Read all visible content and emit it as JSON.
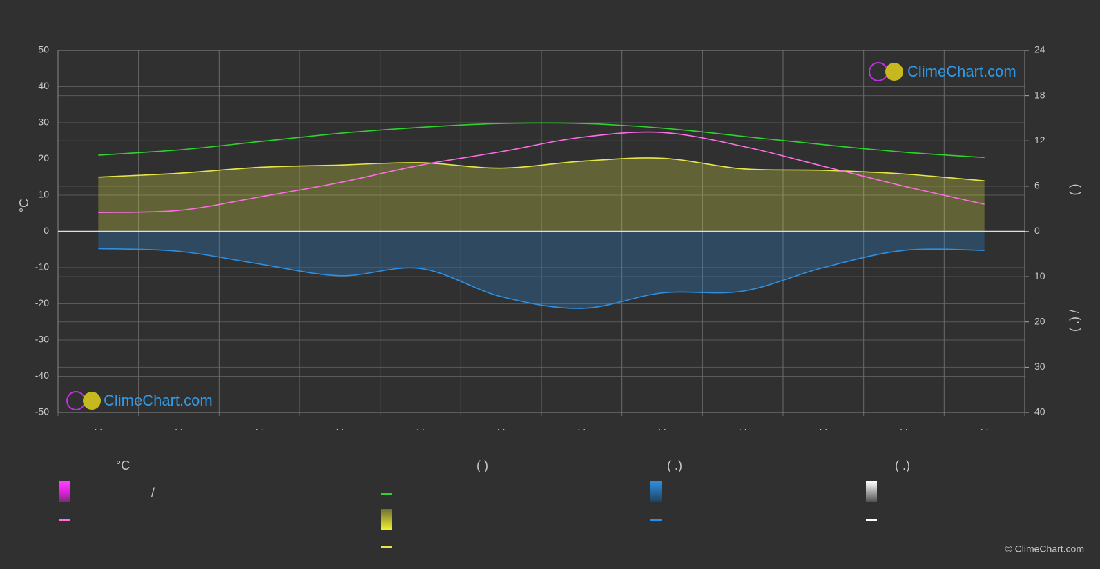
{
  "chart_data": {
    "type": "line",
    "ylabel": "°C",
    "y2label": "(        )",
    "y3label": "(  .)       /",
    "categories": [
      ". .",
      ". .",
      ". .",
      ". .",
      ". .",
      ". .",
      ". .",
      ". .",
      ". .",
      ". .",
      ". .",
      ". ."
    ],
    "ylim": [
      -50,
      50
    ],
    "yticks": [
      50,
      40,
      30,
      20,
      10,
      0,
      -10,
      -20,
      -30,
      -40,
      -50
    ],
    "y2lim": [
      0,
      24
    ],
    "y2ticks": [
      0,
      6,
      12,
      18,
      24
    ],
    "y3lim": [
      0,
      40
    ],
    "y3ticks": [
      10,
      20,
      30,
      40
    ],
    "grid": true,
    "series": [
      {
        "color": "#2fd22f",
        "axis": "y2",
        "values": [
          10.1,
          10.8,
          11.9,
          13.0,
          13.8,
          14.3,
          14.3,
          13.7,
          12.6,
          11.5,
          10.5,
          9.8
        ]
      },
      {
        "color": "#e6e64a",
        "axis": "y2",
        "area": true,
        "values": [
          7.2,
          7.7,
          8.5,
          8.8,
          9.1,
          8.4,
          9.3,
          9.7,
          8.3,
          8.1,
          7.6,
          6.7
        ]
      },
      {
        "color": "#ff6ee6",
        "values": [
          5.2,
          5.8,
          9.5,
          13.5,
          18.3,
          22,
          26,
          27.3,
          23.5,
          18,
          12.5,
          7.5
        ]
      },
      {
        "color": "#2f8fe0",
        "axis": "y3",
        "area": true,
        "values": [
          3.8,
          4.4,
          7.2,
          9.8,
          8.2,
          14.4,
          17,
          13.6,
          13.2,
          8,
          4.2,
          4.2
        ]
      }
    ]
  },
  "logos": [
    "ClimeChart.com",
    "ClimeChart.com"
  ],
  "copyright": "© ClimeChart.com",
  "legend": {
    "headers": [
      "°C",
      "(          )",
      "(   .)",
      "(   .)"
    ],
    "labels": [
      "/"
    ]
  }
}
